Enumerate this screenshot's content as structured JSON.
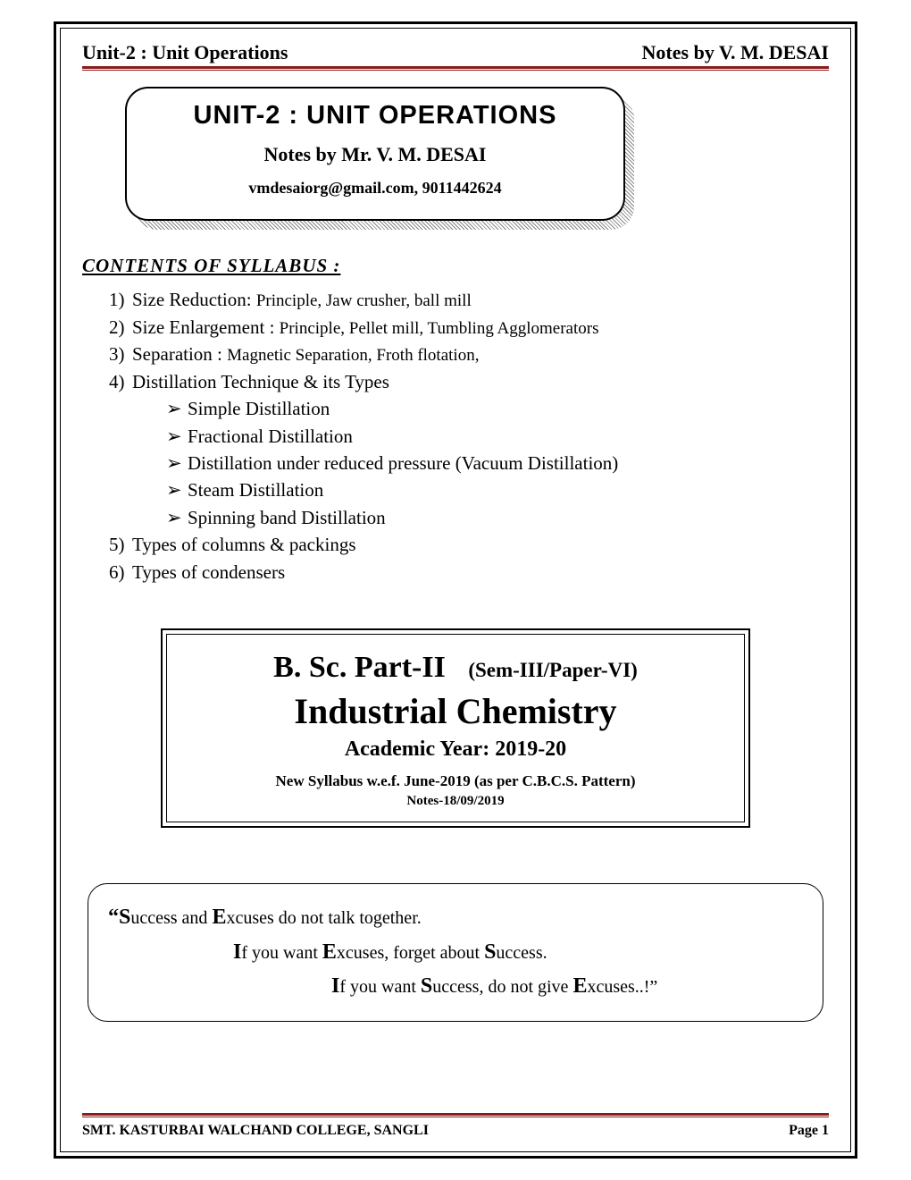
{
  "header": {
    "left": "Unit-2 : Unit Operations",
    "right": "Notes by V. M. DESAI"
  },
  "titleCard": {
    "main": "Unit-2 : Unit Operations",
    "sub": "Notes by Mr. V. M. DESAI",
    "contact": "vmdesaiorg@gmail.com,  9011442624"
  },
  "contentsHeading": "CONTENTS  OF  SYLLABUS :",
  "contents": [
    {
      "num": "1)",
      "label": "Size Reduction: ",
      "detail": "Principle, Jaw crusher, ball mill"
    },
    {
      "num": "2)",
      "label": "Size Enlargement : ",
      "detail": "Principle, Pellet mill, Tumbling Agglomerators"
    },
    {
      "num": "3)",
      "label": "Separation : ",
      "detail": "Magnetic Separation, Froth flotation,"
    },
    {
      "num": "4)",
      "label": "Distillation Technique & its Types",
      "detail": ""
    },
    {
      "num": "5)",
      "label": "Types of columns & packings",
      "detail": ""
    },
    {
      "num": "6)",
      "label": "Types of condensers",
      "detail": ""
    }
  ],
  "subitems": [
    "Simple Distillation",
    "Fractional Distillation",
    "Distillation under reduced pressure (Vacuum Distillation)",
    "Steam Distillation",
    "Spinning band Distillation"
  ],
  "courseBox": {
    "line1a": "B. Sc. Part-II",
    "line1b": "(Sem-III/Paper-VI)",
    "line2": "Industrial Chemistry",
    "line3": "Academic Year: 2019-20",
    "line4": "New Syllabus w.e.f. June-2019 (as per C.B.C.S. Pattern)",
    "line5": "Notes-18/09/2019"
  },
  "quote": {
    "l1_pre": "“",
    "l1_S": "S",
    "l1_mid1": "uccess and ",
    "l1_E": "E",
    "l1_mid2": "xcuses do not talk together.",
    "l2_I": "I",
    "l2_mid1": "f you want ",
    "l2_E": "E",
    "l2_mid2": "xcuses, forget about ",
    "l2_S": "S",
    "l2_mid3": "uccess.",
    "l3_I": "I",
    "l3_mid1": "f you want ",
    "l3_S": "S",
    "l3_mid2": "uccess, do not give ",
    "l3_E": "E",
    "l3_mid3": "xcuses..!”"
  },
  "footer": {
    "left": "SMT. KASTURBAI WALCHAND COLLEGE, SANGLI",
    "right": "Page 1"
  },
  "colors": {
    "rule": "#8b1a1a",
    "text": "#000000",
    "bg": "#ffffff"
  }
}
